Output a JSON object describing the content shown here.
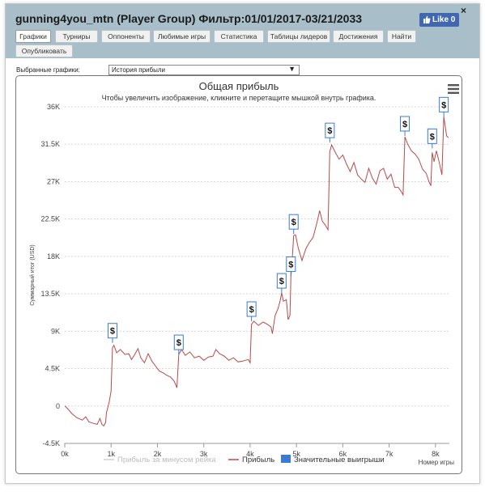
{
  "window": {
    "title": "gunning4you_mtn (Player Group) Фильтр:01/01/2017-03/21/2033",
    "close_glyph": "×",
    "like_label": "Like 0"
  },
  "tabs": [
    {
      "label": "Графики",
      "active": true
    },
    {
      "label": "Турниры"
    },
    {
      "label": "Оппоненты"
    },
    {
      "label": "Любимые игры"
    },
    {
      "label": "Статистика"
    },
    {
      "label": "Таблицы лидеров"
    },
    {
      "label": "Достижения"
    },
    {
      "label": "Найти"
    },
    {
      "label": "Опубликовать"
    }
  ],
  "selector": {
    "label": "Выбранные графики:",
    "value": "История прибыли"
  },
  "chart_data": {
    "type": "line",
    "title": "Общая прибыль",
    "subtitle": "Чтобы увеличить изображение, кликните и перетащите мышкой внутрь графика.",
    "ylabel": "Суммарный итог (USD)",
    "xlabel": "Номер игры",
    "ylim": [
      -4500,
      36000
    ],
    "xlim": [
      0,
      8300
    ],
    "y_ticks": [
      36000,
      31500,
      27000,
      22500,
      18000,
      13500,
      9000,
      4500,
      0,
      -4500
    ],
    "y_tick_labels": [
      "36K",
      "31.5K",
      "27K",
      "22.5K",
      "18K",
      "13.5K",
      "9K",
      "4.5K",
      "0",
      "-4.5K"
    ],
    "x_ticks": [
      0,
      1000,
      2000,
      3000,
      4000,
      5000,
      6000,
      7000,
      8000
    ],
    "x_tick_labels": [
      "0k",
      "1k",
      "2k",
      "3k",
      "4k",
      "5k",
      "6k",
      "7k",
      "8k"
    ],
    "grid": true,
    "legend_position": "bottom",
    "series": [
      {
        "name": "Прибыль за минусом рейка",
        "color": "#cfcfcf",
        "points": []
      },
      {
        "name": "Прибыль",
        "color": "#b84a4a",
        "points": [
          [
            0,
            0
          ],
          [
            60,
            -300
          ],
          [
            150,
            -900
          ],
          [
            260,
            -1400
          ],
          [
            380,
            -1700
          ],
          [
            450,
            -1300
          ],
          [
            520,
            -1900
          ],
          [
            620,
            -2100
          ],
          [
            700,
            -2200
          ],
          [
            760,
            -1500
          ],
          [
            800,
            -2200
          ],
          [
            840,
            -2400
          ],
          [
            880,
            -2000
          ],
          [
            900,
            -800
          ],
          [
            960,
            500
          ],
          [
            1000,
            1800
          ],
          [
            1030,
            7000
          ],
          [
            1060,
            7300
          ],
          [
            1120,
            6400
          ],
          [
            1200,
            6800
          ],
          [
            1300,
            6200
          ],
          [
            1380,
            6300
          ],
          [
            1440,
            5600
          ],
          [
            1500,
            6100
          ],
          [
            1580,
            6900
          ],
          [
            1640,
            5800
          ],
          [
            1720,
            5200
          ],
          [
            1800,
            6300
          ],
          [
            1880,
            5400
          ],
          [
            1960,
            4800
          ],
          [
            2040,
            4200
          ],
          [
            2120,
            4000
          ],
          [
            2200,
            3700
          ],
          [
            2280,
            3500
          ],
          [
            2360,
            3000
          ],
          [
            2420,
            2200
          ],
          [
            2460,
            6200
          ],
          [
            2520,
            6800
          ],
          [
            2600,
            6100
          ],
          [
            2700,
            6500
          ],
          [
            2800,
            5800
          ],
          [
            2900,
            6000
          ],
          [
            3000,
            5500
          ],
          [
            3100,
            5900
          ],
          [
            3200,
            6000
          ],
          [
            3260,
            6800
          ],
          [
            3340,
            6300
          ],
          [
            3440,
            6000
          ],
          [
            3540,
            5500
          ],
          [
            3640,
            5800
          ],
          [
            3740,
            5300
          ],
          [
            3840,
            5400
          ],
          [
            3960,
            5600
          ],
          [
            4000,
            5200
          ],
          [
            4030,
            9800
          ],
          [
            4080,
            10200
          ],
          [
            4180,
            9700
          ],
          [
            4280,
            10100
          ],
          [
            4380,
            9800
          ],
          [
            4450,
            9500
          ],
          [
            4480,
            8700
          ],
          [
            4540,
            10900
          ],
          [
            4600,
            11700
          ],
          [
            4650,
            12700
          ],
          [
            4680,
            13600
          ],
          [
            4720,
            12600
          ],
          [
            4780,
            12800
          ],
          [
            4820,
            10400
          ],
          [
            4860,
            10900
          ],
          [
            4880,
            15600
          ],
          [
            4900,
            16800
          ],
          [
            4940,
            20500
          ],
          [
            4980,
            20600
          ],
          [
            5040,
            19000
          ],
          [
            5120,
            17500
          ],
          [
            5200,
            18900
          ],
          [
            5280,
            19700
          ],
          [
            5360,
            20300
          ],
          [
            5440,
            22000
          ],
          [
            5500,
            23500
          ],
          [
            5560,
            22200
          ],
          [
            5620,
            21800
          ],
          [
            5680,
            21200
          ],
          [
            5720,
            30600
          ],
          [
            5760,
            31400
          ],
          [
            5840,
            30500
          ],
          [
            5920,
            29700
          ],
          [
            6000,
            30200
          ],
          [
            6080,
            29100
          ],
          [
            6160,
            28200
          ],
          [
            6240,
            29300
          ],
          [
            6320,
            27800
          ],
          [
            6400,
            27300
          ],
          [
            6480,
            26900
          ],
          [
            6560,
            28600
          ],
          [
            6640,
            27400
          ],
          [
            6720,
            26700
          ],
          [
            6800,
            28300
          ],
          [
            6880,
            28600
          ],
          [
            6960,
            27300
          ],
          [
            7040,
            27900
          ],
          [
            7120,
            26300
          ],
          [
            7200,
            26300
          ],
          [
            7260,
            25800
          ],
          [
            7300,
            25400
          ],
          [
            7340,
            32400
          ],
          [
            7400,
            31500
          ],
          [
            7480,
            30700
          ],
          [
            7560,
            30300
          ],
          [
            7640,
            29700
          ],
          [
            7720,
            28500
          ],
          [
            7800,
            28000
          ],
          [
            7860,
            27000
          ],
          [
            7900,
            26500
          ],
          [
            7930,
            30500
          ],
          [
            7970,
            29400
          ],
          [
            8020,
            30700
          ],
          [
            8070,
            29600
          ],
          [
            8140,
            27800
          ],
          [
            8180,
            34800
          ],
          [
            8240,
            32500
          ],
          [
            8280,
            32300
          ]
        ]
      },
      {
        "name": "Значительные выигрыши",
        "color": "#3a7bd5",
        "marker_glyph": "$",
        "markers": [
          [
            1030,
            7600
          ],
          [
            2460,
            6200
          ],
          [
            4030,
            10200
          ],
          [
            4680,
            13600
          ],
          [
            4880,
            15600
          ],
          [
            4940,
            20700
          ],
          [
            5720,
            31700
          ],
          [
            7340,
            32500
          ],
          [
            7930,
            31000
          ],
          [
            8180,
            34800
          ]
        ]
      }
    ]
  }
}
